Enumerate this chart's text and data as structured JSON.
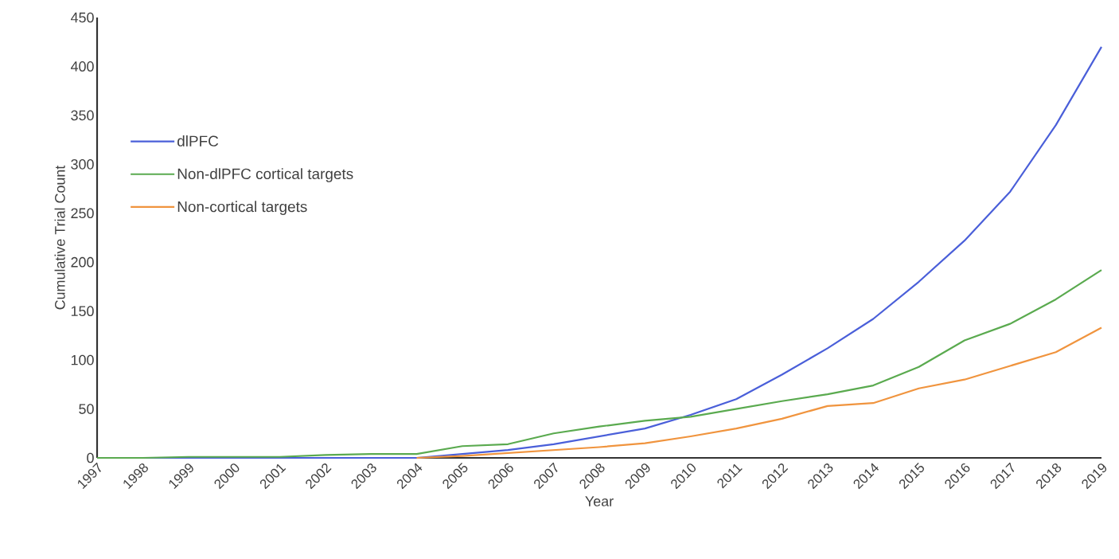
{
  "chart_data": {
    "type": "line",
    "xlabel": "Year",
    "ylabel": "Cumulative Trial Count",
    "categories": [
      "1997",
      "1998",
      "1999",
      "2000",
      "2001",
      "2002",
      "2003",
      "2004",
      "2005",
      "2006",
      "2007",
      "2008",
      "2009",
      "2010",
      "2011",
      "2012",
      "2013",
      "2014",
      "2015",
      "2016",
      "2017",
      "2018",
      "2019"
    ],
    "series": [
      {
        "name": "dlPFC",
        "color": "#4a5fd9",
        "values": [
          0,
          0,
          0,
          0,
          0,
          0,
          0,
          0,
          4,
          8,
          14,
          22,
          30,
          44,
          60,
          85,
          112,
          142,
          180,
          222,
          272,
          340,
          420
        ]
      },
      {
        "name": "Non-dlPFC cortical targets",
        "color": "#5aaa4f",
        "values": [
          0,
          0,
          1,
          1,
          1,
          3,
          4,
          4,
          12,
          14,
          25,
          32,
          38,
          42,
          50,
          58,
          65,
          74,
          93,
          120,
          137,
          162,
          192
        ]
      },
      {
        "name": "Non-cortical targets",
        "color": "#f0943e",
        "values": [
          null,
          null,
          null,
          null,
          null,
          null,
          null,
          0,
          2,
          5,
          8,
          11,
          15,
          22,
          30,
          40,
          53,
          56,
          71,
          80,
          94,
          108,
          133
        ]
      }
    ],
    "ylim": [
      0,
      450
    ],
    "yticks": [
      0,
      50,
      100,
      150,
      200,
      250,
      300,
      350,
      400,
      450
    ],
    "legend": "left",
    "grid": false,
    "marker": "none",
    "line_style": "solid"
  }
}
